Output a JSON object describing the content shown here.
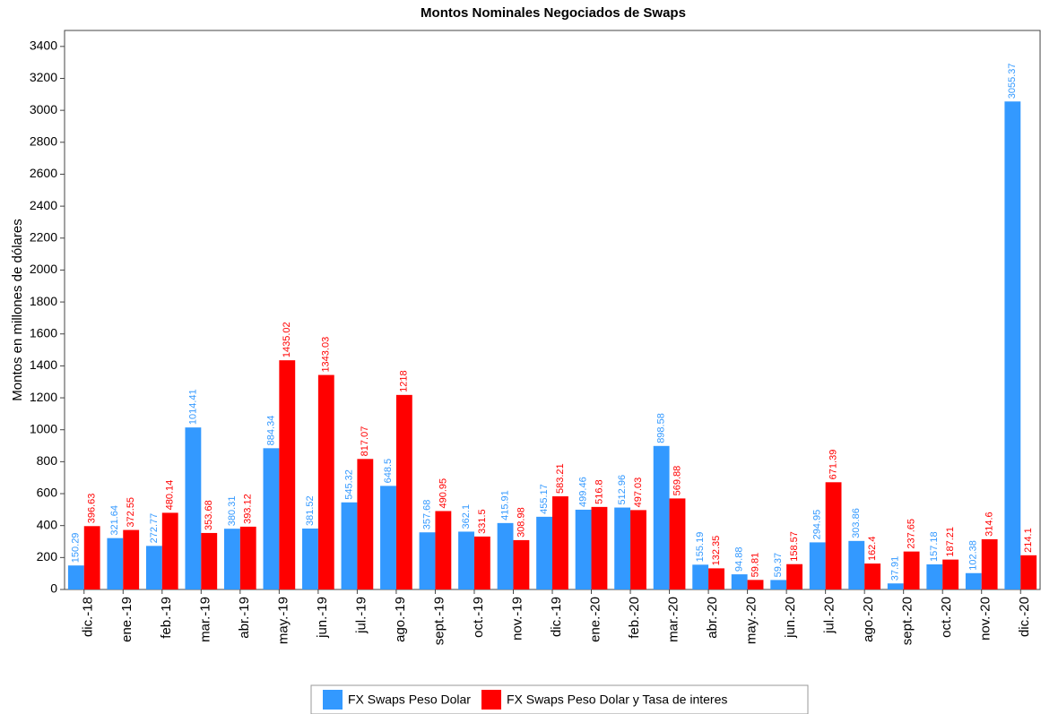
{
  "chart_data": {
    "type": "bar",
    "title": "Montos Nominales Negociados de Swaps",
    "y_label": "Montos en millones de dólares",
    "categories": [
      "dic.-18",
      "ene.-19",
      "feb.-19",
      "mar.-19",
      "abr.-19",
      "may.-19",
      "jun.-19",
      "jul.-19",
      "ago.-19",
      "sept.-19",
      "oct.-19",
      "nov.-19",
      "dic.-19",
      "ene.-20",
      "feb.-20",
      "mar.-20",
      "abr.-20",
      "may.-20",
      "jun.-20",
      "jul.-20",
      "ago.-20",
      "sept.-20",
      "oct.-20",
      "nov.-20",
      "dic.-20"
    ],
    "series": [
      {
        "name": "FX Swaps Peso Dolar",
        "color": "#3399ff",
        "values": [
          150.29,
          321.64,
          272.77,
          1014.41,
          380.31,
          884.34,
          381.52,
          545.32,
          648.5,
          357.68,
          362.1,
          415.91,
          455.17,
          499.46,
          512.96,
          898.58,
          155.19,
          94.88,
          59.37,
          294.95,
          303.86,
          37.91,
          157.18,
          102.38,
          3055.37
        ]
      },
      {
        "name": "FX Swaps Peso Dolar y Tasa de interes",
        "color": "#ff0000",
        "values": [
          396.63,
          372.55,
          480.14,
          353.68,
          393.12,
          1435.02,
          1343.03,
          817.07,
          1218,
          490.95,
          331.5,
          308.98,
          583.21,
          516.8,
          497.03,
          569.88,
          132.35,
          59.81,
          158.57,
          671.39,
          162.4,
          237.65,
          187.21,
          314.6,
          214.1
        ]
      }
    ],
    "ylim": [
      0,
      3500
    ],
    "yticks": [
      0,
      200,
      400,
      600,
      800,
      1000,
      1200,
      1400,
      1600,
      1800,
      2000,
      2200,
      2400,
      2600,
      2800,
      3000,
      3200,
      3400
    ],
    "legend": "bottom"
  }
}
